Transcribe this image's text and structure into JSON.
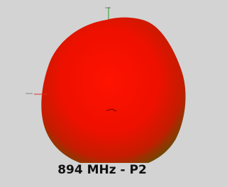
{
  "caption": "894 MHz - P2"
}
